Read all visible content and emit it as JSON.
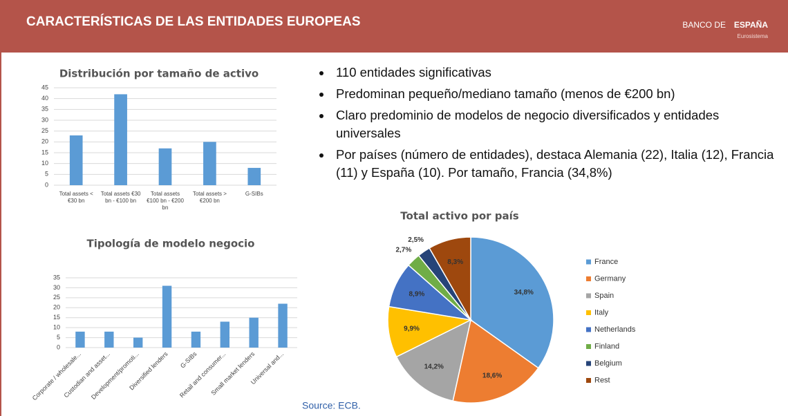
{
  "header": {
    "title": "CARACTERÍSTICAS DE LAS ENTIDADES EUROPEAS",
    "brand_light": "BANCO DE",
    "brand_bold": "ESPAÑA",
    "brand_sub": "Eurosistema"
  },
  "bullets": [
    "110 entidades significativas",
    "Predominan pequeño/mediano tamaño (menos de €200 bn)",
    "Claro predominio de modelos de negocio diversificados y entidades universales",
    "Por países (número de entidades), destaca Alemania (22), Italia (12), Francia (11) y España (10). Por tamaño, Francia (34,8%)"
  ],
  "source": "Source: ECB.",
  "chart_data": [
    {
      "type": "bar",
      "title": "Distribución por tamaño de activo",
      "categories": [
        "Total assets < €30 bn",
        "Total assets €30 bn - €100 bn",
        "Total assets €100 bn - €200 bn",
        "Total assets > €200 bn",
        "G-SIBs"
      ],
      "values": [
        23,
        42,
        17,
        20,
        8
      ],
      "color": "#5b9bd5",
      "ylim": [
        0,
        45
      ],
      "yticks": [
        0,
        5,
        10,
        15,
        20,
        25,
        30,
        35,
        40,
        45
      ],
      "grid": true
    },
    {
      "type": "bar",
      "title": "Tipología de modelo  negocio",
      "categories": [
        "Corporate / wholesale...",
        "Custodian and asset...",
        "Development/promoti...",
        "Diversified lenders",
        "G-SIBs",
        "Retail and consumer...",
        "Small market lenders",
        "Universal and..."
      ],
      "values": [
        8,
        8,
        5,
        31,
        8,
        13,
        15,
        22
      ],
      "color": "#5b9bd5",
      "ylim": [
        0,
        35
      ],
      "yticks": [
        0,
        5,
        10,
        15,
        20,
        25,
        30,
        35
      ],
      "grid": true
    },
    {
      "type": "pie",
      "title": "Total activo por país",
      "categories": [
        "France",
        "Germany",
        "Spain",
        "Italy",
        "Netherlands",
        "Finland",
        "Belgium",
        "Rest"
      ],
      "values": [
        34.8,
        18.6,
        14.2,
        9.9,
        8.9,
        2.7,
        2.5,
        8.3
      ],
      "value_labels": [
        "34,8%",
        "18,6%",
        "14,2%",
        "9,9%",
        "8,9%",
        "2,7%",
        "2,5%",
        "8,3%"
      ],
      "colors": [
        "#5b9bd5",
        "#ed7d31",
        "#a5a5a5",
        "#ffc000",
        "#4472c4",
        "#70ad47",
        "#264478",
        "#9e480e"
      ],
      "legend": "right"
    }
  ]
}
